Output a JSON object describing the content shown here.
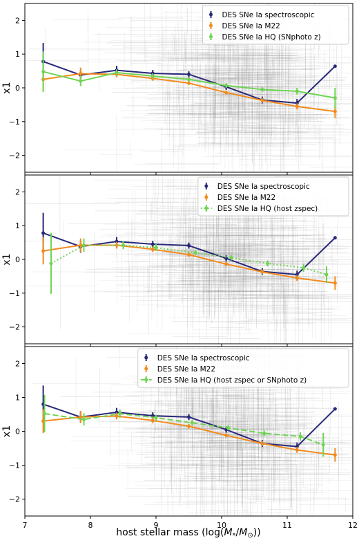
{
  "figure": {
    "xlabel_prefix": "host stellar mass (log(",
    "xlabel_m": "M",
    "xlabel_star": "*",
    "xlabel_slash": "/",
    "xlabel_msun": "M",
    "xlabel_sun": "⊙",
    "xlabel_suffix": "))"
  },
  "chart_data": [
    {
      "type": "line",
      "xlabel": "host stellar mass (log(M*/M⊙))",
      "ylabel": "x1",
      "xlim": [
        7,
        12
      ],
      "ylim": [
        -2.5,
        2.5
      ],
      "xticks": [
        "7",
        "8",
        "9",
        "10",
        "11",
        "12"
      ],
      "yticks": [
        "-2",
        "-1",
        "0",
        "1",
        "2"
      ],
      "legend_position": "top-right",
      "series": [
        {
          "name": "DES SNe Ia spectroscopic",
          "color": "#28287a",
          "style": "solid",
          "x": [
            7.28,
            7.85,
            8.4,
            8.95,
            9.5,
            10.07,
            10.62,
            11.15,
            11.73
          ],
          "y": [
            0.78,
            0.38,
            0.52,
            0.43,
            0.4,
            0.03,
            -0.36,
            -0.45,
            0.64
          ],
          "err": [
            0.55,
            0.15,
            0.13,
            0.1,
            0.09,
            0.09,
            0.1,
            0.12,
            0.0
          ]
        },
        {
          "name": "DES SNe Ia M22",
          "color": "#f28b1d",
          "style": "solid",
          "x": [
            7.28,
            7.85,
            8.4,
            8.95,
            9.5,
            10.07,
            10.62,
            11.15,
            11.73
          ],
          "y": [
            0.25,
            0.42,
            0.4,
            0.28,
            0.14,
            -0.14,
            -0.37,
            -0.55,
            -0.7
          ],
          "err": [
            0.35,
            0.18,
            0.09,
            0.07,
            0.06,
            0.06,
            0.07,
            0.09,
            0.2
          ]
        },
        {
          "name": "DES SNe Ia HQ (SNphoto z)",
          "color": "#6fd453",
          "style": "solid",
          "x": [
            7.28,
            7.85,
            8.4,
            8.95,
            9.5,
            10.07,
            10.62,
            11.15,
            11.73
          ],
          "y": [
            0.48,
            0.2,
            0.45,
            0.35,
            0.25,
            0.07,
            -0.05,
            -0.1,
            -0.3
          ],
          "err": [
            0.6,
            0.15,
            0.1,
            0.08,
            0.07,
            0.07,
            0.07,
            0.1,
            0.3
          ]
        }
      ]
    },
    {
      "type": "line",
      "xlabel": "host stellar mass (log(M*/M⊙))",
      "ylabel": "x1",
      "xlim": [
        7,
        12
      ],
      "ylim": [
        -2.5,
        2.5
      ],
      "xticks": [
        "7",
        "8",
        "9",
        "10",
        "11",
        "12"
      ],
      "yticks": [
        "-2",
        "-1",
        "0",
        "1",
        "2"
      ],
      "legend_position": "top-right",
      "series": [
        {
          "name": "DES SNe Ia spectroscopic",
          "color": "#28287a",
          "style": "solid",
          "x": [
            7.28,
            7.85,
            8.4,
            8.95,
            9.5,
            10.07,
            10.62,
            11.15,
            11.73
          ],
          "y": [
            0.78,
            0.38,
            0.53,
            0.45,
            0.41,
            0.03,
            -0.36,
            -0.45,
            0.64
          ],
          "err": [
            0.6,
            0.18,
            0.13,
            0.1,
            0.09,
            0.09,
            0.1,
            0.12,
            0.0
          ]
        },
        {
          "name": "DES SNe Ia M22",
          "color": "#f28b1d",
          "style": "solid",
          "x": [
            7.28,
            7.85,
            8.4,
            8.95,
            9.5,
            10.07,
            10.62,
            11.15,
            11.73
          ],
          "y": [
            0.25,
            0.42,
            0.42,
            0.3,
            0.14,
            -0.14,
            -0.37,
            -0.55,
            -0.7
          ],
          "err": [
            0.4,
            0.2,
            0.1,
            0.08,
            0.07,
            0.06,
            0.07,
            0.09,
            0.2
          ]
        },
        {
          "name": "DES SNe Ia HQ (host zspec)",
          "color": "#6fd453",
          "style": "dotted",
          "x": [
            7.4,
            7.9,
            8.5,
            9.0,
            9.6,
            10.15,
            10.7,
            11.25,
            11.6
          ],
          "y": [
            -0.12,
            0.42,
            0.42,
            0.35,
            0.2,
            0.05,
            -0.12,
            -0.25,
            -0.45
          ],
          "err": [
            0.9,
            0.2,
            0.12,
            0.1,
            0.08,
            0.08,
            0.09,
            0.12,
            0.25
          ]
        }
      ]
    },
    {
      "type": "line",
      "xlabel": "host stellar mass (log(M*/M⊙))",
      "ylabel": "x1",
      "xlim": [
        7,
        12
      ],
      "ylim": [
        -2.5,
        2.5
      ],
      "xticks": [
        "7",
        "8",
        "9",
        "10",
        "11",
        "12"
      ],
      "yticks": [
        "-2",
        "-1",
        "0",
        "1",
        "2"
      ],
      "legend_position": "top-right",
      "series": [
        {
          "name": "DES SNe Ia spectroscopic",
          "color": "#28287a",
          "style": "solid",
          "x": [
            7.28,
            7.85,
            8.4,
            8.95,
            9.5,
            10.07,
            10.62,
            11.15,
            11.73
          ],
          "y": [
            0.8,
            0.42,
            0.56,
            0.46,
            0.42,
            0.05,
            -0.36,
            -0.45,
            0.66
          ],
          "err": [
            0.55,
            0.15,
            0.13,
            0.1,
            0.09,
            0.09,
            0.1,
            0.12,
            0.0
          ]
        },
        {
          "name": "DES SNe Ia M22",
          "color": "#f28b1d",
          "style": "solid",
          "x": [
            7.28,
            7.85,
            8.4,
            8.95,
            9.5,
            10.07,
            10.62,
            11.15,
            11.73
          ],
          "y": [
            0.3,
            0.42,
            0.45,
            0.32,
            0.15,
            -0.12,
            -0.36,
            -0.55,
            -0.7
          ],
          "err": [
            0.35,
            0.18,
            0.1,
            0.08,
            0.07,
            0.06,
            0.07,
            0.09,
            0.2
          ]
        },
        {
          "name": "DES SNe Ia HQ (host zspec or SNphoto z)",
          "color": "#6fd453",
          "style": "dashed",
          "x": [
            7.3,
            7.9,
            8.45,
            9.0,
            9.55,
            10.1,
            10.65,
            11.2,
            11.55
          ],
          "y": [
            0.52,
            0.35,
            0.52,
            0.4,
            0.25,
            0.1,
            -0.06,
            -0.15,
            -0.4
          ],
          "err": [
            0.55,
            0.18,
            0.12,
            0.09,
            0.08,
            0.07,
            0.08,
            0.12,
            0.35
          ]
        }
      ]
    }
  ]
}
